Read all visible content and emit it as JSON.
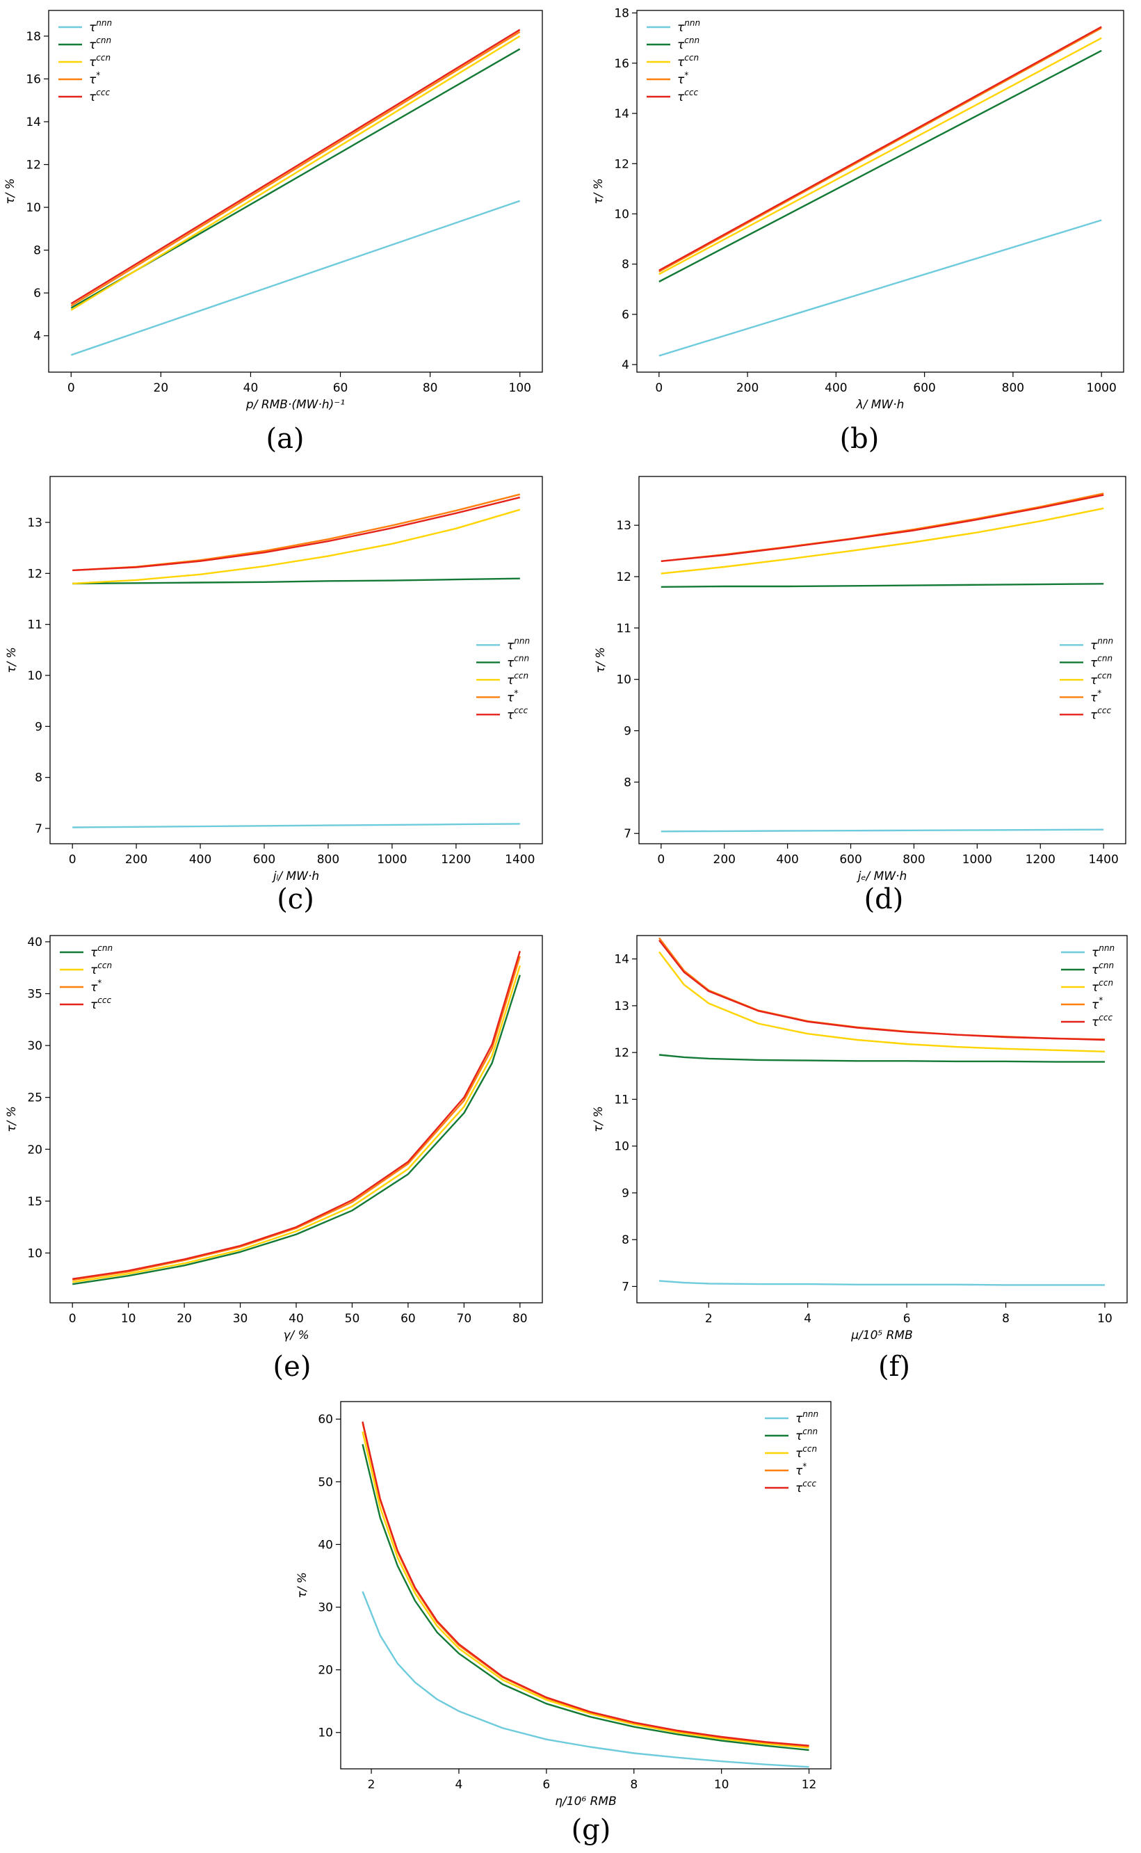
{
  "colors": {
    "nnn": "#6ecbdc",
    "cnn": "#137a36",
    "ccn": "#ffd400",
    "star": "#ff7f0e",
    "ccc": "#e5231b"
  },
  "chart_data": [
    {
      "id": "a",
      "caption": "(a)",
      "type": "line",
      "xlabel": "p/ RMB·(MW·h)⁻¹",
      "ylabel": "τ/ %",
      "xlim": [
        -5,
        105
      ],
      "ylim": [
        2.3,
        19.2
      ],
      "xticks": [
        0,
        20,
        40,
        60,
        80,
        100
      ],
      "yticks": [
        4,
        6,
        8,
        10,
        12,
        14,
        16,
        18
      ],
      "legend_position": "top-left",
      "x": [
        0,
        100
      ],
      "series": [
        {
          "key": "nnn",
          "name": "τ",
          "sup": "nnn",
          "values": [
            3.1,
            10.3
          ]
        },
        {
          "key": "cnn",
          "name": "τ",
          "sup": "cnn",
          "values": [
            5.3,
            17.4
          ]
        },
        {
          "key": "ccn",
          "name": "τ",
          "sup": "ccn",
          "values": [
            5.2,
            18.0
          ]
        },
        {
          "key": "star",
          "name": "τ",
          "sup": "*",
          "values": [
            5.4,
            18.2
          ]
        },
        {
          "key": "ccc",
          "name": "τ",
          "sup": "ccc",
          "values": [
            5.5,
            18.3
          ]
        }
      ]
    },
    {
      "id": "b",
      "caption": "(b)",
      "type": "line",
      "xlabel": "λ/ MW·h",
      "ylabel": "τ/ %",
      "xlim": [
        -50,
        1050
      ],
      "ylim": [
        3.7,
        18.1
      ],
      "xticks": [
        0,
        200,
        400,
        600,
        800,
        1000
      ],
      "yticks": [
        4,
        6,
        8,
        10,
        12,
        14,
        16,
        18
      ],
      "legend_position": "top-left",
      "x": [
        0,
        1000
      ],
      "series": [
        {
          "key": "nnn",
          "name": "τ",
          "sup": "nnn",
          "values": [
            4.35,
            9.75
          ]
        },
        {
          "key": "cnn",
          "name": "τ",
          "sup": "cnn",
          "values": [
            7.3,
            16.5
          ]
        },
        {
          "key": "ccn",
          "name": "τ",
          "sup": "ccn",
          "values": [
            7.6,
            17.0
          ]
        },
        {
          "key": "star",
          "name": "τ",
          "sup": "*",
          "values": [
            7.7,
            17.4
          ]
        },
        {
          "key": "ccc",
          "name": "τ",
          "sup": "ccc",
          "values": [
            7.75,
            17.45
          ]
        }
      ]
    },
    {
      "id": "c",
      "caption": "(c)",
      "type": "line",
      "xlabel": "jₗ/ MW·h",
      "ylabel": "τ/ %",
      "xlim": [
        -70,
        1470
      ],
      "ylim": [
        6.7,
        13.9
      ],
      "xticks": [
        0,
        200,
        400,
        600,
        800,
        1000,
        1200,
        1400
      ],
      "yticks": [
        7,
        8,
        9,
        10,
        11,
        12,
        13
      ],
      "legend_position": "center-right",
      "x": [
        0,
        200,
        400,
        600,
        800,
        1000,
        1200,
        1400
      ],
      "series": [
        {
          "key": "nnn",
          "name": "τ",
          "sup": "nnn",
          "values": [
            7.02,
            7.03,
            7.04,
            7.05,
            7.06,
            7.07,
            7.08,
            7.09
          ]
        },
        {
          "key": "cnn",
          "name": "τ",
          "sup": "cnn",
          "values": [
            11.8,
            11.81,
            11.82,
            11.83,
            11.85,
            11.86,
            11.88,
            11.9
          ]
        },
        {
          "key": "ccn",
          "name": "τ",
          "sup": "ccn",
          "values": [
            11.8,
            11.87,
            11.98,
            12.14,
            12.34,
            12.58,
            12.88,
            13.25
          ]
        },
        {
          "key": "star",
          "name": "τ",
          "sup": "*",
          "values": [
            12.06,
            12.13,
            12.26,
            12.44,
            12.67,
            12.94,
            13.23,
            13.55
          ]
        },
        {
          "key": "ccc",
          "name": "τ",
          "sup": "ccc",
          "values": [
            12.06,
            12.12,
            12.24,
            12.41,
            12.63,
            12.89,
            13.18,
            13.49
          ]
        }
      ]
    },
    {
      "id": "d",
      "caption": "(d)",
      "type": "line",
      "xlabel": "jₑ/ MW·h",
      "ylabel": "τ/ %",
      "xlim": [
        -70,
        1470
      ],
      "ylim": [
        6.8,
        13.95
      ],
      "xticks": [
        0,
        200,
        400,
        600,
        800,
        1000,
        1200,
        1400
      ],
      "yticks": [
        7,
        8,
        9,
        10,
        11,
        12,
        13
      ],
      "legend_position": "center-right",
      "x": [
        0,
        200,
        400,
        600,
        800,
        1000,
        1200,
        1400
      ],
      "series": [
        {
          "key": "nnn",
          "name": "τ",
          "sup": "nnn",
          "values": [
            7.04,
            7.045,
            7.05,
            7.055,
            7.06,
            7.065,
            7.07,
            7.075
          ]
        },
        {
          "key": "cnn",
          "name": "τ",
          "sup": "cnn",
          "values": [
            11.8,
            11.81,
            11.81,
            11.82,
            11.83,
            11.84,
            11.85,
            11.86
          ]
        },
        {
          "key": "ccn",
          "name": "τ",
          "sup": "ccn",
          "values": [
            12.06,
            12.19,
            12.34,
            12.5,
            12.67,
            12.86,
            13.08,
            13.33
          ]
        },
        {
          "key": "star",
          "name": "τ",
          "sup": "*",
          "values": [
            12.3,
            12.43,
            12.58,
            12.74,
            12.92,
            13.13,
            13.36,
            13.62
          ]
        },
        {
          "key": "ccc",
          "name": "τ",
          "sup": "ccc",
          "values": [
            12.3,
            12.42,
            12.57,
            12.73,
            12.9,
            13.11,
            13.34,
            13.59
          ]
        }
      ]
    },
    {
      "id": "e",
      "caption": "(e)",
      "type": "line",
      "xlabel": "γ/ %",
      "ylabel": "τ/ %",
      "xlim": [
        -4,
        84
      ],
      "ylim": [
        5.2,
        40.6
      ],
      "xticks": [
        0,
        10,
        20,
        30,
        40,
        50,
        60,
        70,
        80
      ],
      "yticks": [
        10,
        15,
        20,
        25,
        30,
        35,
        40
      ],
      "legend_position": "top-left",
      "x": [
        0,
        10,
        20,
        30,
        40,
        50,
        60,
        70,
        75,
        80
      ],
      "series": [
        {
          "key": "cnn",
          "name": "τ",
          "sup": "cnn",
          "values": [
            7.0,
            7.8,
            8.8,
            10.1,
            11.8,
            14.1,
            17.6,
            23.5,
            28.3,
            36.8
          ]
        },
        {
          "key": "ccn",
          "name": "τ",
          "sup": "ccn",
          "values": [
            7.2,
            8.0,
            9.0,
            10.3,
            12.1,
            14.5,
            18.1,
            24.1,
            29.0,
            37.7
          ]
        },
        {
          "key": "star",
          "name": "τ",
          "sup": "*",
          "values": [
            7.4,
            8.2,
            9.3,
            10.6,
            12.4,
            14.9,
            18.6,
            24.7,
            29.7,
            38.6
          ]
        },
        {
          "key": "ccc",
          "name": "τ",
          "sup": "ccc",
          "values": [
            7.5,
            8.3,
            9.4,
            10.7,
            12.5,
            15.1,
            18.8,
            25.0,
            30.1,
            39.1
          ]
        }
      ]
    },
    {
      "id": "f",
      "caption": "(f)",
      "type": "line",
      "xlabel": "μ/10⁵ RMB",
      "ylabel": "τ/ %",
      "xlim": [
        0.55,
        10.45
      ],
      "ylim": [
        6.65,
        14.5
      ],
      "xticks": [
        2,
        4,
        6,
        8,
        10
      ],
      "yticks": [
        7,
        8,
        9,
        10,
        11,
        12,
        13,
        14
      ],
      "legend_position": "top-right",
      "x": [
        1,
        1.5,
        2,
        3,
        4,
        5,
        6,
        7,
        8,
        9,
        10
      ],
      "series": [
        {
          "key": "nnn",
          "name": "τ",
          "sup": "nnn",
          "values": [
            7.12,
            7.08,
            7.06,
            7.05,
            7.05,
            7.04,
            7.04,
            7.04,
            7.03,
            7.03,
            7.03
          ]
        },
        {
          "key": "cnn",
          "name": "τ",
          "sup": "cnn",
          "values": [
            11.95,
            11.9,
            11.87,
            11.84,
            11.83,
            11.82,
            11.82,
            11.81,
            11.81,
            11.8,
            11.8
          ]
        },
        {
          "key": "ccn",
          "name": "τ",
          "sup": "ccn",
          "values": [
            14.15,
            13.45,
            13.05,
            12.62,
            12.4,
            12.27,
            12.18,
            12.12,
            12.08,
            12.05,
            12.02
          ]
        },
        {
          "key": "star",
          "name": "τ",
          "sup": "*",
          "values": [
            14.45,
            13.75,
            13.33,
            12.9,
            12.67,
            12.54,
            12.45,
            12.38,
            12.34,
            12.3,
            12.28
          ]
        },
        {
          "key": "ccc",
          "name": "τ",
          "sup": "ccc",
          "values": [
            14.4,
            13.72,
            13.31,
            12.89,
            12.66,
            12.53,
            12.44,
            12.38,
            12.33,
            12.3,
            12.27
          ]
        }
      ]
    },
    {
      "id": "g",
      "caption": "(g)",
      "type": "line",
      "xlabel": "η/10⁶ RMB",
      "ylabel": "τ/ %",
      "xlim": [
        1.3,
        12.5
      ],
      "ylim": [
        4.2,
        62.8
      ],
      "xticks": [
        2,
        4,
        6,
        8,
        10,
        12
      ],
      "yticks": [
        10,
        20,
        30,
        40,
        50,
        60
      ],
      "legend_position": "top-right",
      "x": [
        1.8,
        2.2,
        2.6,
        3,
        3.5,
        4,
        5,
        6,
        7,
        8,
        9,
        10,
        11,
        12
      ],
      "series": [
        {
          "key": "nnn",
          "name": "τ",
          "sup": "nnn",
          "values": [
            32.5,
            25.5,
            21.0,
            18.0,
            15.3,
            13.4,
            10.7,
            8.9,
            7.7,
            6.7,
            6.0,
            5.4,
            4.9,
            4.5
          ]
        },
        {
          "key": "cnn",
          "name": "τ",
          "sup": "cnn",
          "values": [
            56.0,
            44.3,
            36.6,
            31.0,
            26.0,
            22.6,
            17.7,
            14.6,
            12.5,
            10.9,
            9.7,
            8.7,
            7.9,
            7.2
          ]
        },
        {
          "key": "ccn",
          "name": "τ",
          "sup": "ccn",
          "values": [
            58.0,
            45.9,
            37.9,
            32.2,
            27.0,
            23.4,
            18.4,
            15.2,
            13.0,
            11.3,
            10.0,
            9.0,
            8.2,
            7.6
          ]
        },
        {
          "key": "star",
          "name": "τ",
          "sup": "*",
          "values": [
            59.4,
            47.1,
            38.8,
            32.9,
            27.6,
            23.9,
            18.8,
            15.5,
            13.2,
            11.5,
            10.2,
            9.2,
            8.4,
            7.8
          ]
        },
        {
          "key": "ccc",
          "name": "τ",
          "sup": "ccc",
          "values": [
            59.6,
            47.3,
            39.0,
            33.1,
            27.8,
            24.1,
            18.9,
            15.6,
            13.3,
            11.6,
            10.3,
            9.3,
            8.5,
            7.9
          ]
        }
      ]
    }
  ]
}
